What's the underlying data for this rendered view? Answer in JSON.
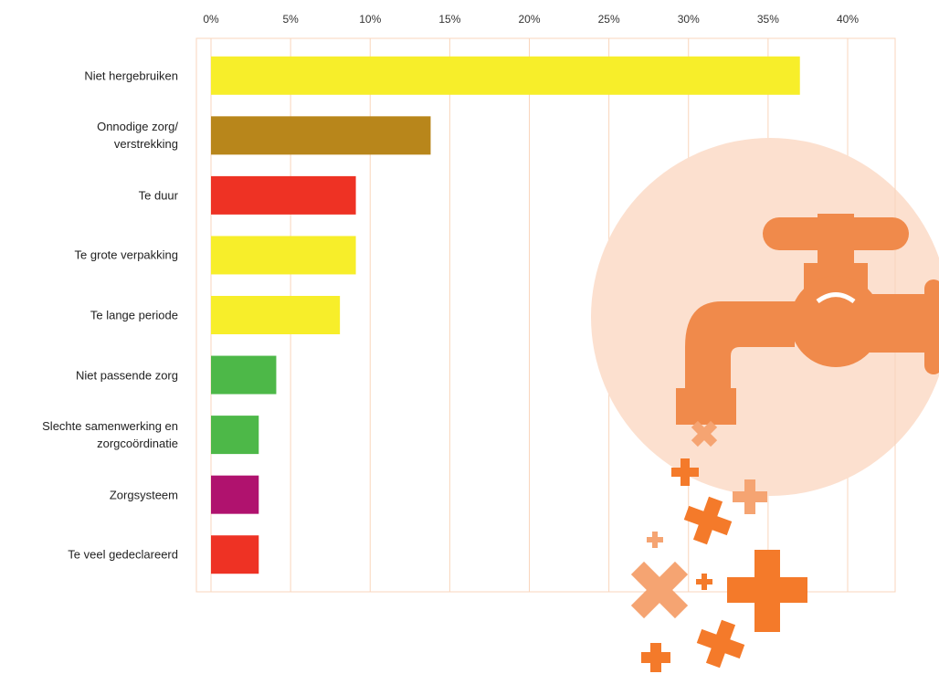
{
  "chart_data": {
    "type": "bar",
    "orientation": "horizontal",
    "categories": [
      "Niet hergebruiken",
      "Onnodige zorg/\nverstrekking",
      "Te duur",
      "Te grote verpakking",
      "Te lange periode",
      "Niet passende zorg",
      "Slechte samenwerking en\nzorgcoördinatie",
      "Zorgsysteem",
      "Te veel gedeclareerd"
    ],
    "values": [
      37.0,
      13.8,
      9.1,
      9.1,
      8.1,
      4.1,
      3.0,
      3.0,
      3.0
    ],
    "colors": [
      "#f7ee2a",
      "#b8861b",
      "#ee3224",
      "#f7ee2a",
      "#f7ee2a",
      "#4db848",
      "#4db848",
      "#b0126e",
      "#ee3224"
    ],
    "xlim": [
      0,
      40
    ],
    "xticks": [
      {
        "value": 0,
        "label": "0%"
      },
      {
        "value": 5,
        "label": "5%"
      },
      {
        "value": 10,
        "label": "10%"
      },
      {
        "value": 15,
        "label": "15%"
      },
      {
        "value": 20,
        "label": "20%"
      },
      {
        "value": 25,
        "label": "25%"
      },
      {
        "value": 30,
        "label": "30%"
      },
      {
        "value": 35,
        "label": "35%"
      },
      {
        "value": 40,
        "label": "40%"
      }
    ],
    "grid": true
  }
}
